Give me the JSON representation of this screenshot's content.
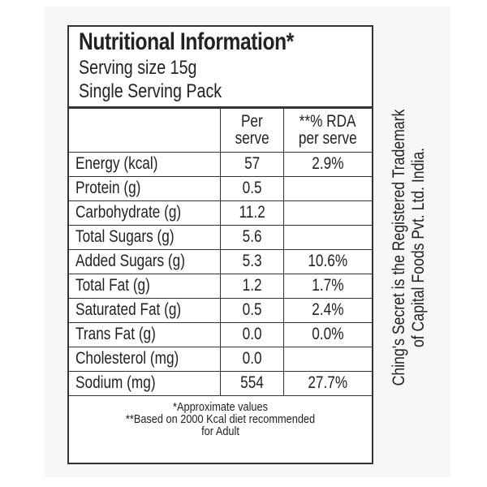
{
  "label": {
    "title": "Nutritional Information*",
    "serving_size": "Serving size 15g",
    "pack": "Single Serving Pack",
    "headers": {
      "per_serve_line1": "Per",
      "per_serve_line2": "serve",
      "rda_line1": "**% RDA",
      "rda_line2": "per serve"
    },
    "rows": [
      {
        "name": "Energy (kcal)",
        "per_serve": "57",
        "rda": "2.9%"
      },
      {
        "name": "Protein (g)",
        "per_serve": "0.5",
        "rda": ""
      },
      {
        "name": "Carbohydrate (g)",
        "per_serve": "11.2",
        "rda": ""
      },
      {
        "name": "Total Sugars (g)",
        "per_serve": "5.6",
        "rda": ""
      },
      {
        "name": "Added Sugars (g)",
        "per_serve": "5.3",
        "rda": "10.6%"
      },
      {
        "name": "Total Fat (g)",
        "per_serve": "1.2",
        "rda": "1.7%"
      },
      {
        "name": "Saturated Fat (g)",
        "per_serve": "0.5",
        "rda": "2.4%"
      },
      {
        "name": "Trans Fat (g)",
        "per_serve": "0.0",
        "rda": "0.0%"
      },
      {
        "name": "Cholesterol (mg)",
        "per_serve": "0.0",
        "rda": ""
      },
      {
        "name": "Sodium (mg)",
        "per_serve": "554",
        "rda": "27.7%"
      }
    ],
    "footnote_1": "*Approximate values",
    "footnote_2": "**Based on 2000 Kcal diet recommended",
    "footnote_3": "for Adult"
  },
  "trademark": {
    "line1": "Ching's Secret is the Registered Trademark",
    "line2": "of Capital Foods Pvt. Ltd. India."
  }
}
